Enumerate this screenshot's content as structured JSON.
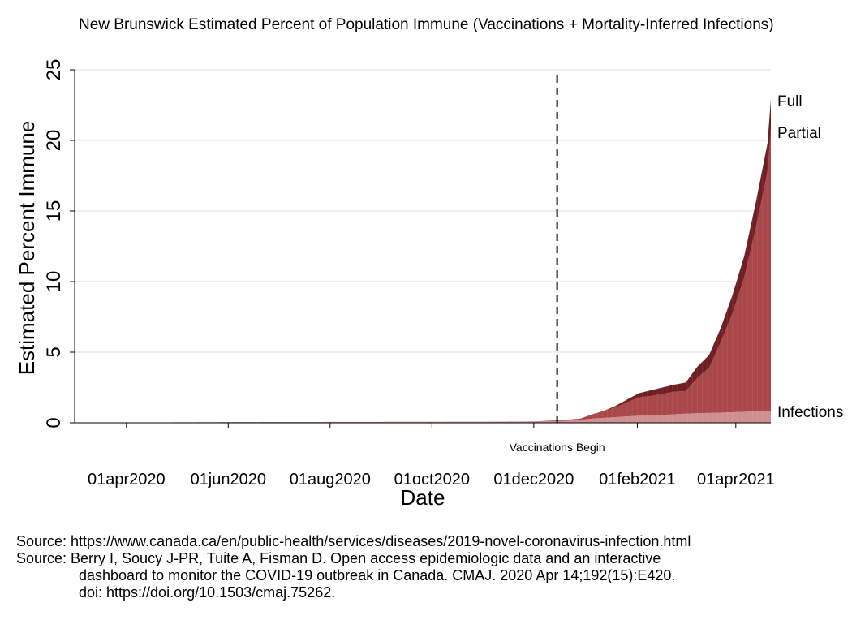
{
  "chart_data": {
    "type": "area",
    "title": "New Brunswick Estimated Percent of Population Immune (Vaccinations + Mortality-Inferred Infections)",
    "xlabel": "Date",
    "ylabel": "Estimated Percent Immune",
    "ylim": [
      0,
      25
    ],
    "yticks": [
      0,
      5,
      10,
      15,
      20,
      25
    ],
    "xticks": [
      "01apr2020",
      "01jun2020",
      "01aug2020",
      "01oct2020",
      "01dec2020",
      "01feb2021",
      "01apr2021"
    ],
    "grid": true,
    "stacked": true,
    "x": [
      "2020-03-01",
      "2020-06-01",
      "2020-11-01",
      "2020-12-01",
      "2020-12-15",
      "2020-12-29",
      "2021-01-05",
      "2021-01-12",
      "2021-01-19",
      "2021-01-26",
      "2021-02-02",
      "2021-02-09",
      "2021-02-16",
      "2021-02-23",
      "2021-03-02",
      "2021-03-09",
      "2021-03-16",
      "2021-03-23",
      "2021-03-30",
      "2021-04-06",
      "2021-04-13",
      "2021-04-20",
      "2021-04-22"
    ],
    "series": [
      {
        "name": "Infections",
        "values": [
          0,
          0.05,
          0.08,
          0.1,
          0.12,
          0.2,
          0.3,
          0.35,
          0.4,
          0.45,
          0.5,
          0.5,
          0.55,
          0.6,
          0.65,
          0.68,
          0.7,
          0.72,
          0.75,
          0.78,
          0.8,
          0.8,
          0.8
        ]
      },
      {
        "name": "Partial",
        "values": [
          0,
          0,
          0,
          0,
          0.05,
          0.1,
          0.3,
          0.5,
          0.7,
          1.0,
          1.3,
          1.4,
          1.5,
          1.6,
          1.6,
          2.5,
          3.2,
          5.0,
          7.0,
          9.5,
          13.0,
          17.0,
          20.0
        ]
      },
      {
        "name": "Full",
        "values": [
          0,
          0,
          0,
          0,
          0,
          0,
          0,
          0,
          0.1,
          0.2,
          0.3,
          0.4,
          0.45,
          0.5,
          0.6,
          0.8,
          0.9,
          1.0,
          1.3,
          1.5,
          1.8,
          2.0,
          2.1
        ]
      }
    ],
    "colors": {
      "Infections": "#cf8f90",
      "Partial": "#a9474b",
      "Full": "#6e1f24"
    },
    "annotations": [
      {
        "text": "Vaccinations Begin",
        "x": "2020-12-15",
        "style": "dashed vertical line"
      }
    ]
  },
  "page": {
    "title": "New Brunswick Estimated Percent of Population Immune (Vaccinations + Mortality-Inferred Infections)",
    "sources": [
      "Source: https://www.canada.ca/en/public-health/services/diseases/2019-novel-coronavirus-infection.html",
      "Source: Berry I, Soucy J-PR, Tuite A, Fisman D. Open access epidemiologic data and an interactive",
      "dashboard to monitor the COVID-19 outbreak in Canada. CMAJ. 2020 Apr 14;192(15):E420.",
      "doi: https://doi.org/10.1503/cmaj.75262."
    ]
  }
}
